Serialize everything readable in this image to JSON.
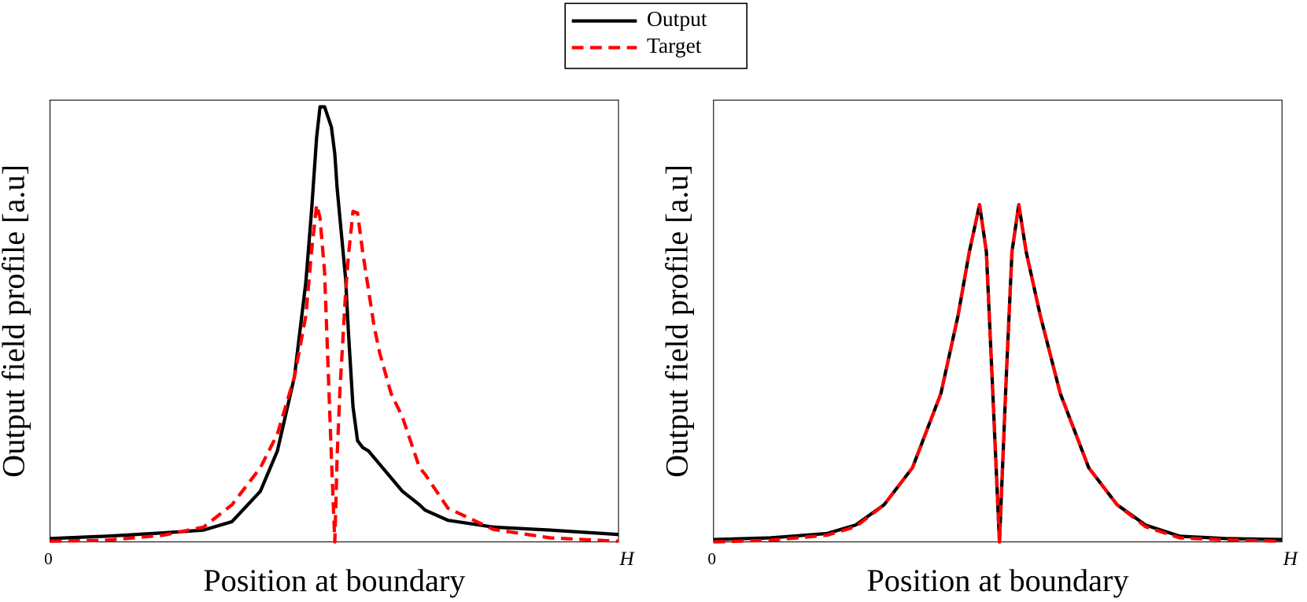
{
  "chart_data": [
    {
      "type": "line",
      "xlabel": "Position at boundary",
      "ylabel": "Output field profile [a.u]",
      "x": [
        0,
        0.1,
        0.2,
        0.27,
        0.32,
        0.37,
        0.4,
        0.43,
        0.45,
        0.46,
        0.469,
        0.475,
        0.483,
        0.495,
        0.501,
        0.505,
        0.51,
        0.52,
        0.525,
        0.533,
        0.541,
        0.55,
        0.56,
        0.57,
        0.58,
        0.6,
        0.62,
        0.65,
        0.66,
        0.7,
        0.78,
        0.88,
        1.0
      ],
      "series": [
        {
          "name": "Output",
          "color": "#000000",
          "linestyle": "solid",
          "values": [
            0.01,
            0.017,
            0.027,
            0.035,
            0.06,
            0.15,
            0.27,
            0.49,
            0.77,
            0.98,
            1.2,
            1.29,
            1.29,
            1.23,
            1.15,
            1.05,
            0.96,
            0.78,
            0.62,
            0.4,
            0.3,
            0.28,
            0.27,
            0.25,
            0.23,
            0.19,
            0.15,
            0.11,
            0.094,
            0.064,
            0.044,
            0.035,
            0.022
          ]
        },
        {
          "name": "Target",
          "color": "#ff0000",
          "linestyle": "dashed",
          "values": [
            0.002,
            0.005,
            0.02,
            0.044,
            0.11,
            0.22,
            0.32,
            0.49,
            0.67,
            0.86,
            1.0,
            0.96,
            0.8,
            0.25,
            0,
            0.25,
            0.45,
            0.74,
            0.85,
            0.98,
            0.975,
            0.86,
            0.75,
            0.64,
            0.56,
            0.44,
            0.37,
            0.22,
            0.2,
            0.1,
            0.037,
            0.012,
            0.002
          ]
        }
      ],
      "xlim": [
        0,
        1
      ],
      "xticks": [
        0,
        {
          "value": 1,
          "label": "H"
        }
      ],
      "ylim": [
        0,
        1.31
      ],
      "legend": "top"
    },
    {
      "type": "line",
      "xlabel": "Position at boundary",
      "ylabel": "Output field profile [a.u]",
      "x": [
        0,
        0.1,
        0.2,
        0.25,
        0.3,
        0.35,
        0.4,
        0.43,
        0.45,
        0.468,
        0.48,
        0.49,
        0.503,
        0.515,
        0.525,
        0.537,
        0.55,
        0.575,
        0.61,
        0.66,
        0.71,
        0.76,
        0.82,
        0.9,
        1.0
      ],
      "series": [
        {
          "color": "#000000",
          "linestyle": "solid",
          "values": [
            0.007,
            0.012,
            0.025,
            0.05,
            0.11,
            0.22,
            0.44,
            0.67,
            0.86,
            1.0,
            0.86,
            0.49,
            0,
            0.49,
            0.86,
            1.0,
            0.86,
            0.67,
            0.44,
            0.22,
            0.11,
            0.05,
            0.017,
            0.01,
            0.007
          ]
        },
        {
          "color": "#ff0000",
          "linestyle": "dashed",
          "values": [
            0.0,
            0.005,
            0.02,
            0.045,
            0.11,
            0.22,
            0.44,
            0.67,
            0.86,
            1.0,
            0.86,
            0.49,
            0,
            0.49,
            0.86,
            1.0,
            0.86,
            0.67,
            0.44,
            0.22,
            0.11,
            0.045,
            0.012,
            0.006,
            0.002
          ]
        }
      ],
      "xlim": [
        0,
        1
      ],
      "xticks": [
        0,
        {
          "value": 1,
          "label": "H"
        }
      ],
      "ylim": [
        0,
        1.31
      ]
    }
  ]
}
